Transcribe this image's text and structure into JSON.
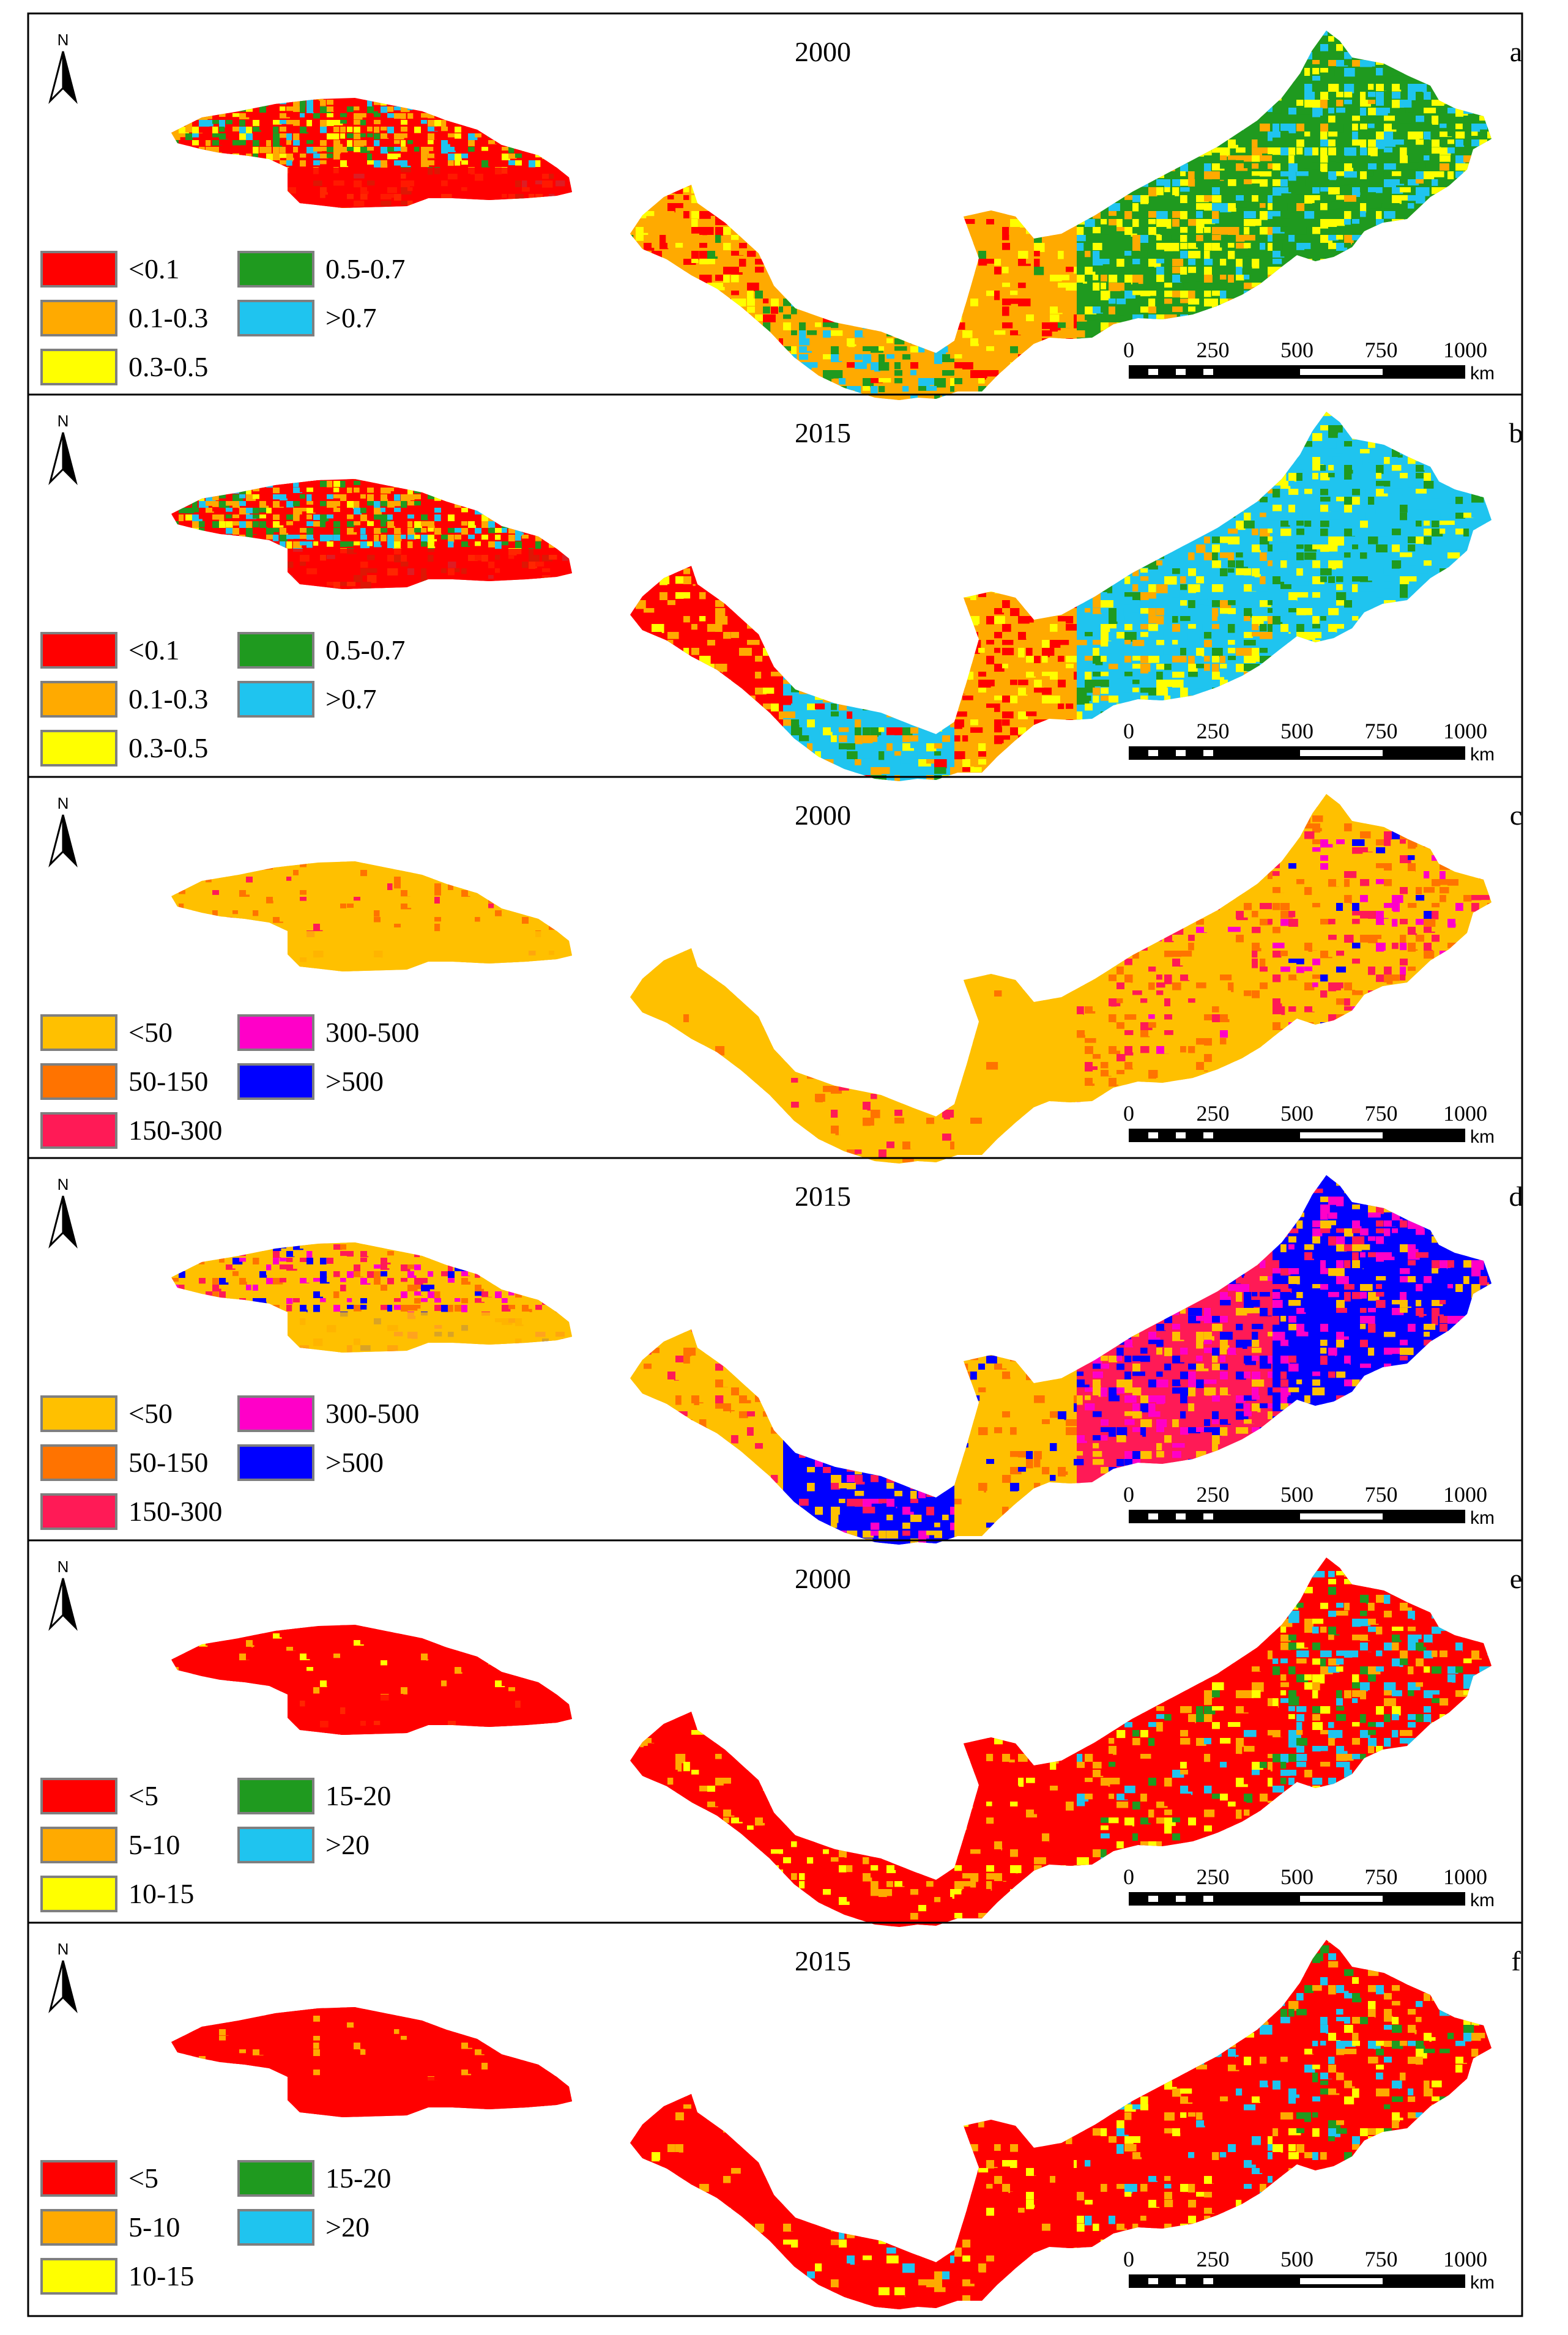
{
  "north_label": "N",
  "scale_bar": {
    "ticks": [
      "0",
      "250",
      "500",
      "750",
      "1000"
    ],
    "unit": "km"
  },
  "legends": {
    "coverage": {
      "items": [
        {
          "label": "<0.1",
          "color": "#ff0000"
        },
        {
          "label": "0.1-0.3",
          "color": "#ffaa00"
        },
        {
          "label": "0.3-0.5",
          "color": "#ffff00"
        },
        {
          "label": "0.5-0.7",
          "color": "#1f9a1f"
        },
        {
          "label": ">0.7",
          "color": "#1fc4ef"
        }
      ]
    },
    "density": {
      "items": [
        {
          "label": "<50",
          "color": "#ffc000"
        },
        {
          "label": "50-150",
          "color": "#ff7300"
        },
        {
          "label": "150-300",
          "color": "#ff1a56"
        },
        {
          "label": "300-500",
          "color": "#ff00c8"
        },
        {
          "label": ">500",
          "color": "#0000ff"
        }
      ]
    },
    "value": {
      "items": [
        {
          "label": "<5",
          "color": "#ff0000"
        },
        {
          "label": "5-10",
          "color": "#ffaa00"
        },
        {
          "label": "10-15",
          "color": "#ffff00"
        },
        {
          "label": "15-20",
          "color": "#1f9a1f"
        },
        {
          "label": ">20",
          "color": "#1fc4ef"
        }
      ]
    }
  },
  "panels": [
    {
      "letter": "a",
      "year": "2000",
      "legend": "coverage",
      "west_mix": {
        "#ff0000": 0.4,
        "#ffaa00": 0.25,
        "#ffff00": 0.15,
        "#1f9a1f": 0.12,
        "#1fc4ef": 0.08
      },
      "east_mix": [
        {
          "#ff0000": 0.3,
          "#ffaa00": 0.45,
          "#ffff00": 0.2,
          "#1f9a1f": 0.05
        },
        {
          "#ffaa00": 0.3,
          "#1f9a1f": 0.25,
          "#1fc4ef": 0.3,
          "#ffff00": 0.1,
          "#ff0000": 0.05
        },
        {
          "#ffaa00": 0.6,
          "#ff0000": 0.15,
          "#ffff00": 0.2,
          "#1f9a1f": 0.05
        },
        {
          "#1f9a1f": 0.35,
          "#ffff00": 0.3,
          "#1fc4ef": 0.15,
          "#ffaa00": 0.2
        },
        {
          "#1f9a1f": 0.4,
          "#1fc4ef": 0.3,
          "#ffff00": 0.25,
          "#ffaa00": 0.05
        }
      ]
    },
    {
      "letter": "b",
      "year": "2015",
      "legend": "coverage",
      "west_mix": {
        "#ff0000": 0.4,
        "#ffaa00": 0.2,
        "#1fc4ef": 0.15,
        "#1f9a1f": 0.15,
        "#ffff00": 0.1
      },
      "east_mix": [
        {
          "#ff0000": 0.6,
          "#ffaa00": 0.3,
          "#ffff00": 0.1
        },
        {
          "#1fc4ef": 0.4,
          "#1f9a1f": 0.2,
          "#ffaa00": 0.2,
          "#ff0000": 0.1,
          "#ffff00": 0.1
        },
        {
          "#ff0000": 0.35,
          "#ffaa00": 0.5,
          "#ffff00": 0.15
        },
        {
          "#1fc4ef": 0.35,
          "#ffff00": 0.25,
          "#1f9a1f": 0.2,
          "#ffaa00": 0.2
        },
        {
          "#1fc4ef": 0.6,
          "#1f9a1f": 0.2,
          "#ffff00": 0.2
        }
      ]
    },
    {
      "letter": "c",
      "year": "2000",
      "legend": "density",
      "west_mix": {
        "#ffc000": 0.9,
        "#ff7300": 0.07,
        "#ff1a56": 0.03
      },
      "east_mix": [
        {
          "#ffc000": 0.97,
          "#ff7300": 0.03
        },
        {
          "#ffc000": 0.8,
          "#ff7300": 0.1,
          "#ff1a56": 0.1
        },
        {
          "#ffc000": 0.95,
          "#ff7300": 0.05
        },
        {
          "#ffc000": 0.75,
          "#ff7300": 0.12,
          "#ff1a56": 0.1,
          "#ff00c8": 0.03
        },
        {
          "#ffc000": 0.55,
          "#ff7300": 0.15,
          "#ff1a56": 0.15,
          "#ff00c8": 0.1,
          "#0000ff": 0.05
        }
      ]
    },
    {
      "letter": "d",
      "year": "2015",
      "legend": "density",
      "west_mix": {
        "#ffc000": 0.65,
        "#ff7300": 0.1,
        "#ff1a56": 0.1,
        "#ff00c8": 0.08,
        "#0000ff": 0.07
      },
      "east_mix": [
        {
          "#ffc000": 0.85,
          "#ff7300": 0.1,
          "#ff1a56": 0.05
        },
        {
          "#0000ff": 0.4,
          "#ffc000": 0.25,
          "#ff1a56": 0.2,
          "#ff00c8": 0.15
        },
        {
          "#ffc000": 0.85,
          "#ff7300": 0.1,
          "#0000ff": 0.05
        },
        {
          "#ff1a56": 0.35,
          "#ff00c8": 0.25,
          "#ffc000": 0.2,
          "#0000ff": 0.2
        },
        {
          "#0000ff": 0.45,
          "#ff00c8": 0.2,
          "#ffc000": 0.2,
          "#ff1a56": 0.15
        }
      ]
    },
    {
      "letter": "e",
      "year": "2000",
      "legend": "value",
      "west_mix": {
        "#ff0000": 0.95,
        "#ffaa00": 0.03,
        "#ffff00": 0.02
      },
      "east_mix": [
        {
          "#ff0000": 0.85,
          "#ffaa00": 0.1,
          "#ffff00": 0.05
        },
        {
          "#ff0000": 0.8,
          "#ffaa00": 0.12,
          "#ffff00": 0.08
        },
        {
          "#ff0000": 0.85,
          "#ffaa00": 0.1,
          "#ffff00": 0.05
        },
        {
          "#ff0000": 0.65,
          "#ffaa00": 0.15,
          "#ffff00": 0.1,
          "#1f9a1f": 0.05,
          "#1fc4ef": 0.05
        },
        {
          "#ff0000": 0.45,
          "#ffaa00": 0.15,
          "#ffff00": 0.1,
          "#1f9a1f": 0.1,
          "#1fc4ef": 0.2
        }
      ]
    },
    {
      "letter": "f",
      "year": "2015",
      "legend": "value",
      "west_mix": {
        "#ff0000": 0.97,
        "#ffaa00": 0.03
      },
      "east_mix": [
        {
          "#ff0000": 0.9,
          "#ffaa00": 0.07,
          "#ffff00": 0.03
        },
        {
          "#ff0000": 0.8,
          "#ffaa00": 0.1,
          "#ffff00": 0.05,
          "#1fc4ef": 0.05
        },
        {
          "#ff0000": 0.9,
          "#ffaa00": 0.07,
          "#ffff00": 0.03
        },
        {
          "#ff0000": 0.7,
          "#ffaa00": 0.12,
          "#ffff00": 0.08,
          "#1fc4ef": 0.1
        },
        {
          "#ff0000": 0.6,
          "#ffaa00": 0.12,
          "#ffff00": 0.08,
          "#1f9a1f": 0.08,
          "#1fc4ef": 0.12
        }
      ]
    }
  ]
}
